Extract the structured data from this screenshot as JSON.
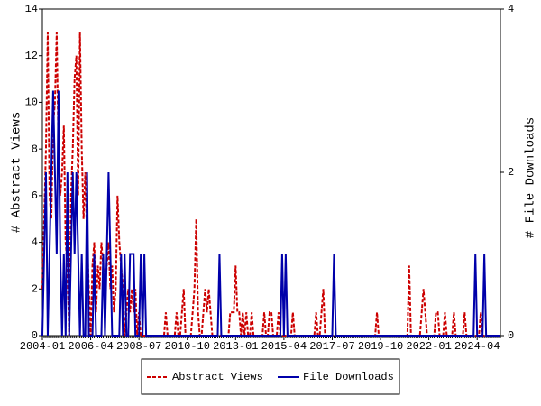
{
  "chart_data": {
    "type": "line",
    "categories": [
      "2004-01",
      null,
      null,
      null,
      null,
      null,
      null,
      null,
      null,
      null,
      null,
      null,
      null,
      null,
      null,
      null,
      null,
      null,
      null,
      null,
      null,
      null,
      null,
      null,
      null,
      null,
      null,
      "2006-04",
      null,
      null,
      null,
      null,
      null,
      null,
      null,
      null,
      null,
      null,
      null,
      null,
      null,
      null,
      null,
      null,
      null,
      null,
      null,
      null,
      null,
      null,
      null,
      null,
      null,
      null,
      "2008-07",
      null,
      null,
      null,
      null,
      null,
      null,
      null,
      null,
      null,
      null,
      null,
      null,
      null,
      null,
      null,
      null,
      null,
      null,
      null,
      null,
      null,
      null,
      null,
      null,
      null,
      null,
      "2010-10",
      null,
      null,
      null,
      null,
      null,
      null,
      null,
      null,
      null,
      null,
      null,
      null,
      null,
      null,
      null,
      null,
      null,
      null,
      null,
      null,
      null,
      null,
      null,
      null,
      null,
      null,
      "2013-01",
      null,
      null,
      null,
      null,
      null,
      null,
      null,
      null,
      null,
      null,
      null,
      null,
      null,
      null,
      null,
      null,
      null,
      null,
      null,
      null,
      null,
      null,
      null,
      null,
      null,
      null,
      "2015-04",
      null,
      null,
      null,
      null,
      null,
      null,
      null,
      null,
      null,
      null,
      null,
      null,
      null,
      null,
      null,
      null,
      null,
      null,
      null,
      null,
      null,
      null,
      null,
      null,
      null,
      null,
      "2017-07",
      null,
      null,
      null,
      null,
      null,
      null,
      null,
      null,
      null,
      null,
      null,
      null,
      null,
      null,
      null,
      null,
      null,
      null,
      null,
      null,
      null,
      null,
      null,
      null,
      null,
      null,
      "2019-10",
      null,
      null,
      null,
      null,
      null,
      null,
      null,
      null,
      null,
      null,
      null,
      null,
      null,
      null,
      null,
      null,
      null,
      null,
      null,
      null,
      null,
      null,
      null,
      null,
      null,
      null,
      "2022-01",
      null,
      null,
      null,
      null,
      null,
      null,
      null,
      null,
      null,
      null,
      null,
      null,
      null,
      null,
      null,
      null,
      null,
      null,
      null,
      null,
      null,
      null,
      null,
      null,
      null,
      null,
      "2024-04",
      null,
      null,
      null,
      null,
      null,
      null,
      null,
      null,
      null,
      null,
      null,
      null,
      null
    ],
    "series": [
      {
        "name": "Abstract Views",
        "color": "#cc0000",
        "dash": true,
        "axis": "y",
        "values": [
          2,
          5,
          8,
          13,
          6,
          5,
          9,
          10,
          13,
          8,
          6,
          7,
          9,
          4,
          3,
          0,
          6,
          8,
          11,
          12,
          6,
          13,
          8,
          5,
          7,
          4,
          2,
          0,
          3,
          4,
          1,
          3,
          2,
          4,
          3,
          2,
          3,
          4,
          2,
          3,
          1,
          2,
          6,
          4,
          3,
          2,
          0,
          1,
          2,
          1,
          2,
          1,
          2,
          0,
          1,
          0,
          0,
          0,
          0,
          0,
          0,
          0,
          0,
          0,
          0,
          0,
          0,
          0,
          0,
          1,
          0,
          0,
          0,
          0,
          0,
          1,
          0,
          0,
          1,
          2,
          0,
          0,
          0,
          0,
          1,
          2,
          5,
          1,
          0,
          0,
          1,
          2,
          1,
          2,
          1,
          0,
          0,
          0,
          0,
          0,
          0,
          0,
          0,
          0,
          0,
          1,
          1,
          1,
          3,
          1,
          1,
          0,
          1,
          0,
          1,
          0,
          0,
          1,
          0,
          0,
          0,
          0,
          0,
          0,
          1,
          0,
          0,
          1,
          1,
          0,
          0,
          0,
          1,
          0,
          0,
          0,
          0,
          0,
          0,
          0,
          1,
          0,
          0,
          0,
          0,
          0,
          0,
          0,
          0,
          0,
          0,
          0,
          0,
          1,
          0,
          0,
          1,
          2,
          0,
          0,
          0,
          0,
          0,
          0,
          0,
          0,
          0,
          0,
          0,
          0,
          0,
          0,
          0,
          0,
          0,
          0,
          0,
          0,
          0,
          0,
          0,
          0,
          0,
          0,
          0,
          0,
          0,
          1,
          0,
          0,
          0,
          0,
          0,
          0,
          0,
          0,
          0,
          0,
          0,
          0,
          0,
          0,
          0,
          0,
          0,
          3,
          0,
          0,
          0,
          0,
          0,
          0,
          1,
          2,
          1,
          0,
          0,
          0,
          0,
          0,
          1,
          1,
          0,
          0,
          0,
          1,
          0,
          0,
          0,
          0,
          1,
          0,
          0,
          0,
          0,
          0,
          1,
          0,
          0,
          0,
          0,
          0,
          0,
          0,
          0,
          1,
          0,
          0,
          0,
          0,
          0,
          0,
          0,
          0,
          0,
          0,
          0
        ]
      },
      {
        "name": "File Downloads",
        "color": "#0000aa",
        "dash": false,
        "axis": "y2",
        "values": [
          0,
          1,
          2,
          0,
          1,
          2,
          3,
          2,
          1,
          3,
          1,
          0,
          1,
          0,
          2,
          0,
          1,
          2,
          1,
          2,
          1,
          0,
          1,
          0,
          0,
          2,
          0,
          0,
          0,
          1,
          0,
          0,
          0,
          0,
          1,
          0,
          1,
          2,
          1,
          0,
          0,
          0,
          0,
          0,
          1,
          0,
          1,
          0,
          0,
          1,
          1,
          1,
          0,
          0,
          0,
          1,
          0,
          1,
          0,
          0,
          0,
          0,
          0,
          0,
          0,
          0,
          0,
          0,
          0,
          0,
          0,
          0,
          0,
          0,
          0,
          0,
          0,
          0,
          0,
          0,
          0,
          0,
          0,
          0,
          0,
          0,
          0,
          0,
          0,
          0,
          0,
          0,
          0,
          0,
          0,
          0,
          0,
          0,
          0,
          1,
          0,
          0,
          0,
          0,
          0,
          0,
          0,
          0,
          0,
          0,
          0,
          0,
          0,
          0,
          0,
          0,
          0,
          0,
          0,
          0,
          0,
          0,
          0,
          0,
          0,
          0,
          0,
          0,
          0,
          0,
          0,
          0,
          0,
          0,
          1,
          0,
          1,
          0,
          0,
          0,
          0,
          0,
          0,
          0,
          0,
          0,
          0,
          0,
          0,
          0,
          0,
          0,
          0,
          0,
          0,
          0,
          0,
          0,
          0,
          0,
          0,
          0,
          0,
          1,
          0,
          0,
          0,
          0,
          0,
          0,
          0,
          0,
          0,
          0,
          0,
          0,
          0,
          0,
          0,
          0,
          0,
          0,
          0,
          0,
          0,
          0,
          0,
          0,
          0,
          0,
          0,
          0,
          0,
          0,
          0,
          0,
          0,
          0,
          0,
          0,
          0,
          0,
          0,
          0,
          0,
          0,
          0,
          0,
          0,
          0,
          0,
          0,
          0,
          0,
          0,
          0,
          0,
          0,
          0,
          0,
          0,
          0,
          0,
          0,
          0,
          0,
          0,
          0,
          0,
          0,
          0,
          0,
          0,
          0,
          0,
          0,
          0,
          0,
          0,
          0,
          0,
          0,
          1,
          0,
          0,
          0,
          0,
          1,
          0,
          0,
          0,
          0,
          0,
          0,
          0,
          0,
          0
        ]
      }
    ],
    "ylabel": "# Abstract Views",
    "y2label": "# File Downloads",
    "ylim": [
      0,
      14
    ],
    "yticks": [
      0,
      2,
      4,
      6,
      8,
      10,
      12,
      14
    ],
    "y2lim": [
      0,
      4
    ],
    "y2ticks": [
      0,
      2,
      4
    ],
    "legend": "bottom"
  }
}
